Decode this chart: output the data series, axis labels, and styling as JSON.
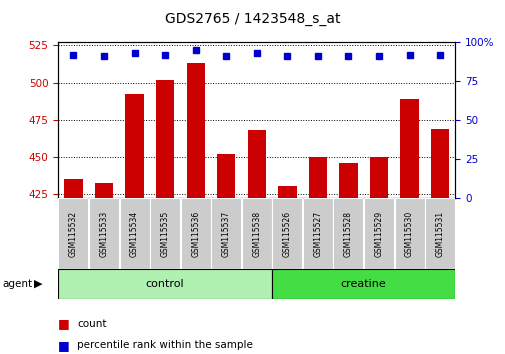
{
  "title": "GDS2765 / 1423548_s_at",
  "samples": [
    "GSM115532",
    "GSM115533",
    "GSM115534",
    "GSM115535",
    "GSM115536",
    "GSM115537",
    "GSM115538",
    "GSM115526",
    "GSM115527",
    "GSM115528",
    "GSM115529",
    "GSM115530",
    "GSM115531"
  ],
  "counts": [
    435,
    432,
    492,
    502,
    513,
    452,
    468,
    430,
    450,
    446,
    450,
    489,
    469
  ],
  "percentile_ranks": [
    92,
    91,
    93,
    92,
    95,
    91,
    93,
    91,
    91,
    91,
    91,
    92,
    92
  ],
  "groups": [
    "control",
    "control",
    "control",
    "control",
    "control",
    "control",
    "control",
    "creatine",
    "creatine",
    "creatine",
    "creatine",
    "creatine",
    "creatine"
  ],
  "group_colors": {
    "control": "#b0f0b0",
    "creatine": "#44dd44"
  },
  "bar_color": "#cc0000",
  "dot_color": "#0000cc",
  "ylim_left": [
    422,
    527
  ],
  "ylim_right": [
    0,
    100
  ],
  "yticks_left": [
    425,
    450,
    475,
    500,
    525
  ],
  "yticks_right": [
    0,
    25,
    50,
    75,
    100
  ],
  "ylabel_left_color": "#cc0000",
  "ylabel_right_color": "#0000cc",
  "agent_label": "agent",
  "legend_count_label": "count",
  "legend_percentile_label": "percentile rank within the sample"
}
